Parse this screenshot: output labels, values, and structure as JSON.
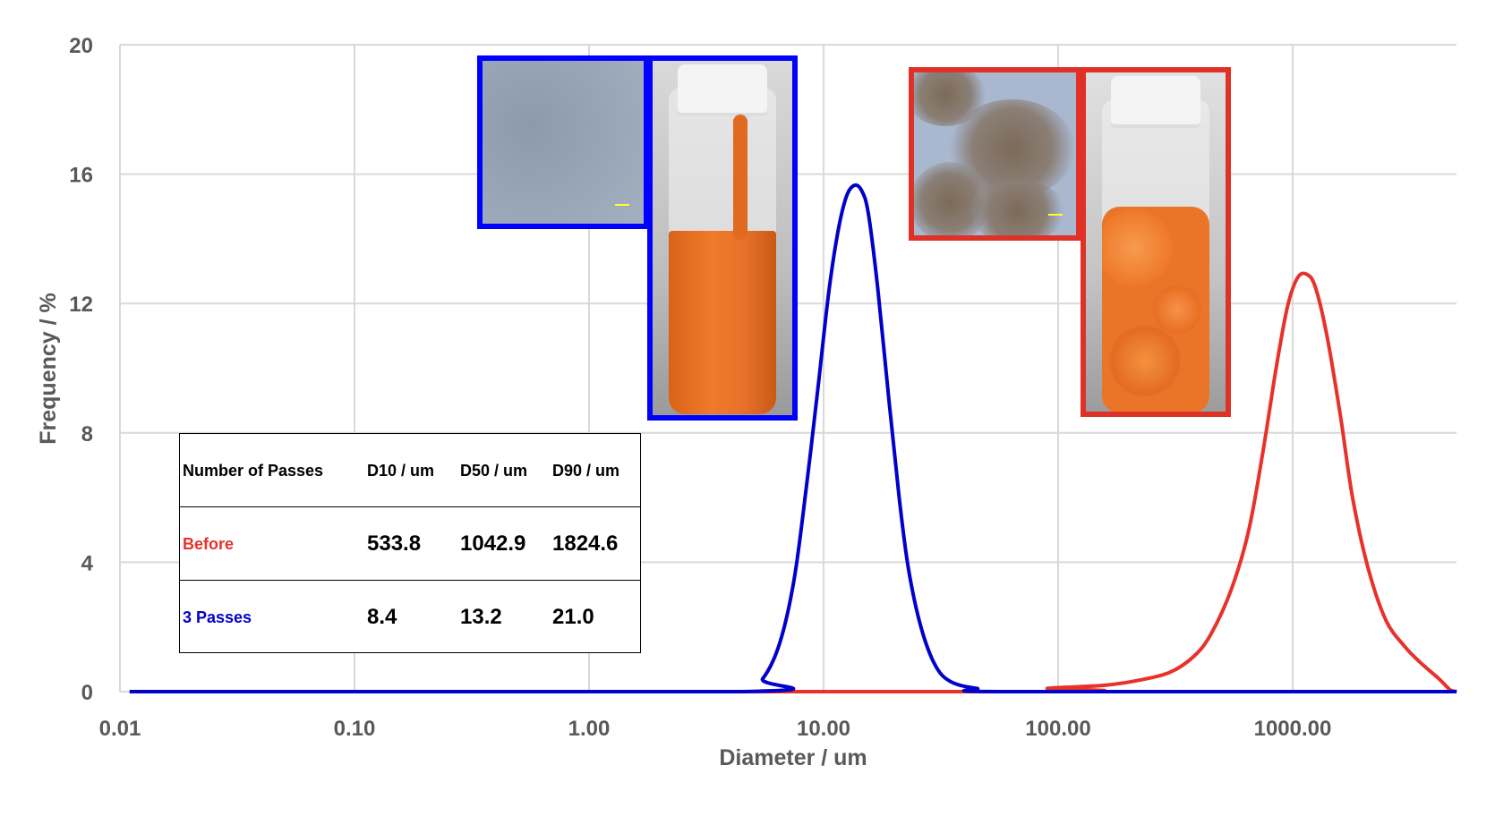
{
  "chart_data": {
    "type": "line",
    "xlabel": "Diameter / um",
    "ylabel": "Frequency / %",
    "x_scale": "log",
    "xlim": [
      0.01,
      5000
    ],
    "ylim": [
      0,
      20
    ],
    "grid": true,
    "x_ticks": [
      0.01,
      0.1,
      1,
      10,
      100,
      1000
    ],
    "x_tick_labels": [
      "0.01",
      "0.10",
      "1.00",
      "10.00",
      "100.00",
      "1000.00"
    ],
    "y_ticks": [
      0,
      4,
      8,
      12,
      16,
      20
    ],
    "y_tick_labels": [
      "0",
      "4",
      "8",
      "12",
      "16",
      "20"
    ],
    "series": [
      {
        "color": "#e8312a",
        "x": [
          0.011,
          80,
          90,
          120,
          160,
          220,
          300,
          380,
          450,
          550,
          650,
          750,
          850,
          950,
          1050,
          1150,
          1250,
          1400,
          1600,
          1800,
          2100,
          2500,
          3000,
          3500,
          4200,
          4700,
          5000
        ],
        "y": [
          0,
          0,
          0.1,
          0.15,
          0.2,
          0.35,
          0.6,
          1.1,
          1.8,
          3.2,
          5.0,
          7.5,
          10.0,
          11.9,
          12.8,
          12.9,
          12.5,
          11.0,
          8.5,
          6.0,
          3.8,
          2.2,
          1.4,
          0.9,
          0.4,
          0.05,
          0
        ]
      },
      {
        "color": "#0000cc",
        "x": [
          0.011,
          4.5,
          5.5,
          6.5,
          7.5,
          8.5,
          9.5,
          10.5,
          11.5,
          12.5,
          13.5,
          14.5,
          15.5,
          17,
          19,
          21,
          23,
          26,
          30,
          35,
          45,
          60,
          5000
        ],
        "y": [
          0,
          0,
          0.4,
          1.5,
          3.5,
          6.5,
          9.5,
          12.3,
          14.2,
          15.3,
          15.65,
          15.5,
          14.8,
          12.5,
          9.0,
          6.0,
          3.8,
          2.0,
          0.8,
          0.3,
          0.1,
          0,
          0
        ]
      }
    ]
  },
  "table": {
    "headers": [
      "Number of Passes",
      "D10 / um",
      "D50 / um",
      "D90 / um"
    ],
    "rows": [
      {
        "label": "Before",
        "color": "#e8312a",
        "d10": "533.8",
        "d50": "1042.9",
        "d90": "1824.6"
      },
      {
        "label": "3 Passes",
        "color": "#0000cc",
        "d10": "8.4",
        "d50": "13.2",
        "d90": "21.0"
      }
    ]
  },
  "insets": {
    "after_border_color": "#0000ff",
    "before_border_color": "#e03127"
  }
}
